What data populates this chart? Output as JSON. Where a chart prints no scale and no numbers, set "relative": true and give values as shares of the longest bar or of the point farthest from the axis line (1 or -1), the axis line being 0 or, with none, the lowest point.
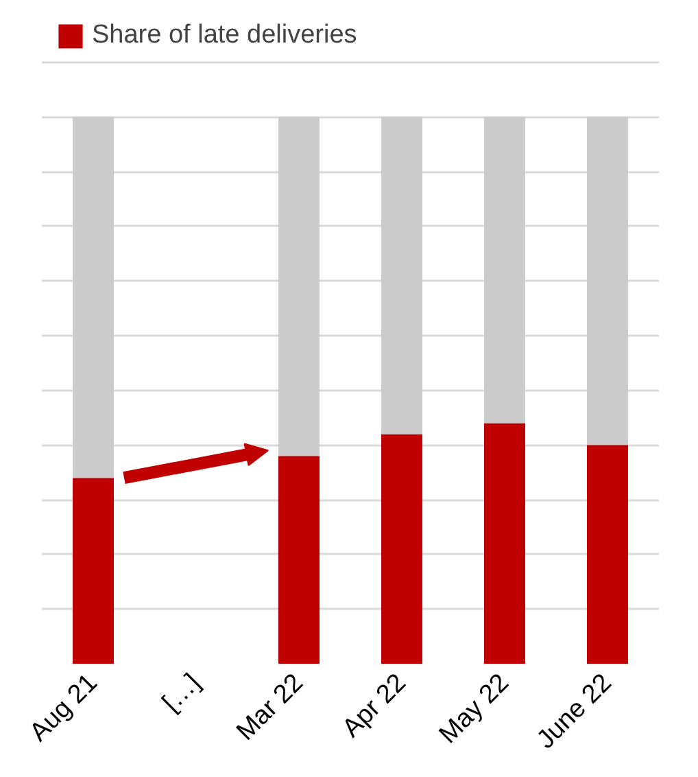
{
  "chart_data": {
    "type": "bar",
    "stacked": true,
    "relative": true,
    "categories": [
      "Aug 21",
      "[…]",
      "Mar 22",
      "Apr 22",
      "May 22",
      "June 22"
    ],
    "series": [
      {
        "name": "Share of late deliveries",
        "color": "#c00000",
        "values": [
          0.34,
          null,
          0.38,
          0.42,
          0.44,
          0.4
        ]
      },
      {
        "color": "#cccccc",
        "values": [
          0.66,
          null,
          0.62,
          0.58,
          0.56,
          0.6
        ]
      }
    ],
    "grid": "y",
    "legend": "top left",
    "tick_labels": "x"
  }
}
